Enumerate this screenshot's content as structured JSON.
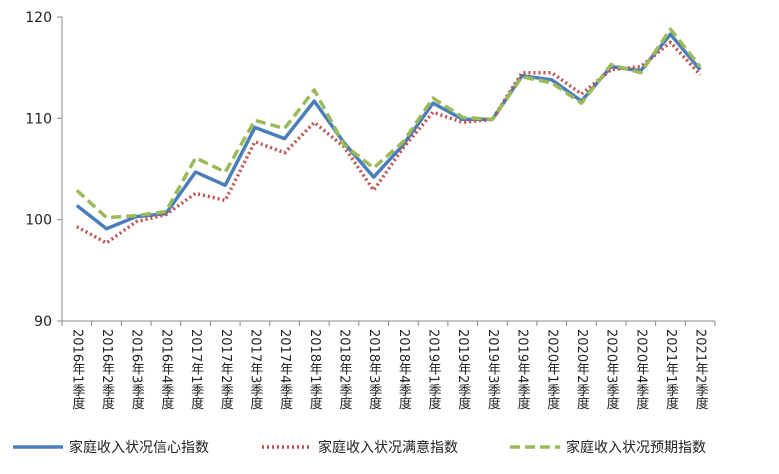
{
  "chart_data": {
    "type": "line",
    "categories": [
      "2016年1季度",
      "2016年2季度",
      "2016年3季度",
      "2016年4季度",
      "2017年1季度",
      "2017年2季度",
      "2017年3季度",
      "2017年4季度",
      "2018年1季度",
      "2018年2季度",
      "2018年3季度",
      "2018年4季度",
      "2019年1季度",
      "2019年2季度",
      "2019年3季度",
      "2019年4季度",
      "2020年1季度",
      "2020年2季度",
      "2020年3季度",
      "2020年4季度",
      "2021年1季度",
      "2021年2季度"
    ],
    "series": [
      {
        "name": "家庭收入状况信心指数",
        "color": "#4a7ebb",
        "dash": "solid",
        "values": [
          101.4,
          99.1,
          100.3,
          100.6,
          104.7,
          103.4,
          109.1,
          108.0,
          111.7,
          107.6,
          104.2,
          107.4,
          111.5,
          109.9,
          109.9,
          114.2,
          113.8,
          111.7,
          115.1,
          114.7,
          118.3,
          114.8
        ]
      },
      {
        "name": "家庭收入状况满意指数",
        "color": "#c0504d",
        "dash": "dotted",
        "values": [
          99.3,
          97.7,
          99.8,
          100.5,
          102.6,
          101.9,
          107.7,
          106.6,
          109.6,
          107.2,
          102.9,
          107.1,
          110.6,
          109.6,
          109.9,
          114.5,
          114.5,
          112.4,
          114.8,
          115.1,
          117.5,
          114.3
        ]
      },
      {
        "name": "家庭收入状况预期指数",
        "color": "#9bbb59",
        "dash": "dashed",
        "values": [
          102.9,
          100.2,
          100.4,
          100.8,
          106.1,
          104.7,
          109.8,
          109.0,
          112.8,
          107.4,
          105.1,
          107.7,
          112.0,
          110.1,
          109.9,
          114.1,
          113.5,
          111.5,
          115.3,
          114.5,
          118.8,
          115.1
        ]
      }
    ],
    "ylim": [
      90,
      120
    ],
    "yticks": [
      90,
      100,
      110,
      120
    ],
    "grid": false,
    "legend": "bottom"
  }
}
